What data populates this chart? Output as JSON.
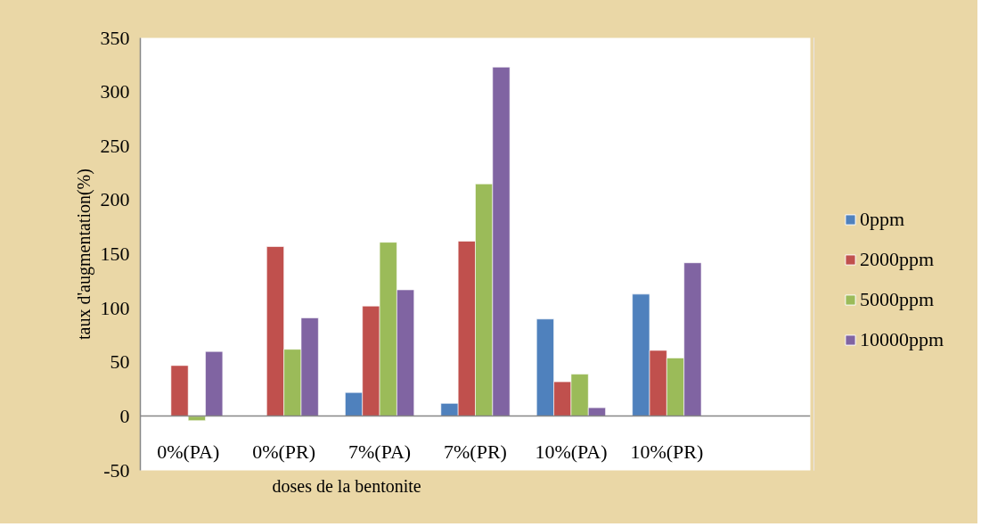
{
  "chart_data": {
    "type": "bar",
    "xlabel": "doses de la bentonite",
    "ylabel": "taux d'augmentation(%)",
    "categories": [
      "0%(PA)",
      "0%(PR)",
      "7%(PA)",
      "7%(PR)",
      "10%(PA)",
      "10%(PR)",
      null
    ],
    "series": [
      {
        "name": "0ppm",
        "color": "#4f81bd",
        "values": [
          null,
          null,
          22,
          12,
          90,
          113,
          null
        ]
      },
      {
        "name": "2000ppm",
        "color": "#c0504d",
        "values": [
          47,
          157,
          102,
          162,
          32,
          61,
          null
        ]
      },
      {
        "name": "5000ppm",
        "color": "#9bbb59",
        "values": [
          -4,
          62,
          161,
          215,
          39,
          54,
          null
        ]
      },
      {
        "name": "10000ppm",
        "color": "#8064a2",
        "values": [
          60,
          91,
          117,
          323,
          8,
          142,
          null
        ]
      }
    ],
    "ylim": [
      -50,
      350
    ],
    "yticks": [
      -50,
      0,
      50,
      100,
      150,
      200,
      250,
      300,
      350
    ],
    "legend": "right"
  }
}
